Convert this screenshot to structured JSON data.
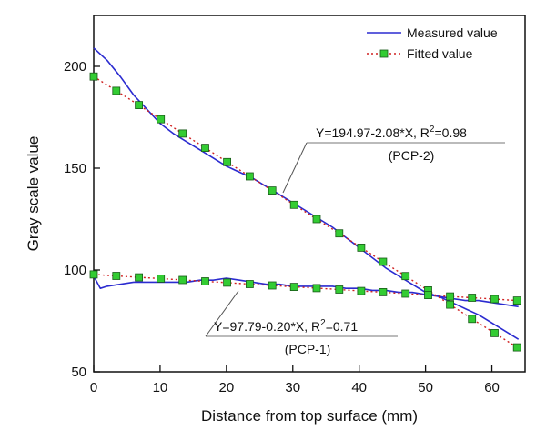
{
  "chart_data": {
    "type": "line",
    "title": "",
    "xlabel": "Distance from top surface (mm)",
    "ylabel": "Gray scale value",
    "xlim": [
      0,
      65
    ],
    "ylim": [
      50,
      225
    ],
    "x_ticks": [
      0,
      10,
      20,
      30,
      40,
      50,
      60
    ],
    "y_ticks": [
      50,
      100,
      150,
      200
    ],
    "legend": {
      "placement": "top-right",
      "entries": [
        {
          "label": "Measured value",
          "style": "line",
          "color": "#2b2bd0"
        },
        {
          "label": "Fitted value",
          "style": "dotted-line-square-marker",
          "color": "#d02020",
          "marker_color": "#33cc33"
        }
      ]
    },
    "series": [
      {
        "name": "Measured value (PCP-2)",
        "kind": "measured",
        "color": "#2b2bd0",
        "x": [
          0,
          2,
          4,
          6,
          8,
          10,
          12,
          14,
          16,
          18,
          20,
          22,
          24,
          26,
          28,
          30,
          32,
          34,
          36,
          38,
          40,
          42,
          44,
          46,
          48,
          50,
          52,
          54,
          56,
          58,
          60,
          62,
          64
        ],
        "y": [
          209,
          203,
          195,
          186,
          179,
          172,
          167,
          163,
          159,
          155,
          151,
          148,
          145,
          141,
          137,
          133,
          129,
          125,
          121,
          116,
          111,
          106,
          101,
          97,
          93,
          89,
          87,
          84,
          81,
          78,
          74,
          70,
          66
        ]
      },
      {
        "name": "Measured value (PCP-1)",
        "kind": "measured",
        "color": "#2b2bd0",
        "x": [
          0,
          1,
          2,
          4,
          6,
          8,
          10,
          12,
          14,
          16,
          18,
          20,
          22,
          24,
          26,
          28,
          30,
          32,
          34,
          36,
          38,
          40,
          42,
          44,
          46,
          48,
          50,
          52,
          54,
          56,
          58,
          60,
          62,
          64
        ],
        "y": [
          97,
          91,
          92,
          93,
          94,
          94,
          94,
          94,
          94,
          95,
          95,
          96,
          95,
          94,
          93,
          93,
          92,
          92,
          92,
          92,
          91,
          91,
          90,
          90,
          89,
          89,
          88,
          87,
          86,
          85,
          85,
          84,
          83,
          82
        ]
      },
      {
        "name": "Fitted value (PCP-2)",
        "kind": "fitted",
        "color": "#d02020",
        "marker_color": "#33cc33",
        "x": [
          0,
          3.4,
          6.8,
          10.1,
          13.4,
          16.8,
          20.1,
          23.5,
          26.9,
          30.2,
          33.6,
          37,
          40.3,
          43.6,
          47,
          50.4,
          53.7,
          57,
          60.4,
          63.8
        ],
        "y": [
          195,
          188,
          181,
          174,
          167,
          160,
          153,
          146,
          139,
          132,
          125,
          118,
          111,
          104,
          97,
          90,
          83,
          76,
          69,
          62
        ]
      },
      {
        "name": "Fitted value (PCP-1)",
        "kind": "fitted",
        "color": "#d02020",
        "marker_color": "#33cc33",
        "x": [
          0,
          3.4,
          6.8,
          10.1,
          13.4,
          16.8,
          20.1,
          23.5,
          26.9,
          30.2,
          33.6,
          37,
          40.3,
          43.6,
          47,
          50.4,
          53.7,
          57,
          60.4,
          63.8
        ],
        "y": [
          97.8,
          97.1,
          96.4,
          95.8,
          95.1,
          94.4,
          93.8,
          93.1,
          92.4,
          91.7,
          91.1,
          90.4,
          89.7,
          89.1,
          88.4,
          87.7,
          87.0,
          86.4,
          85.7,
          85.0
        ]
      }
    ],
    "annotations": [
      {
        "id": "pcp2",
        "equation_prefix": "Y=194.97-2.08*X, R",
        "superscript": "2",
        "equation_suffix": "=0.98",
        "label": "(PCP-2)",
        "points_to": {
          "x": 30,
          "y": 133
        }
      },
      {
        "id": "pcp1",
        "equation_prefix": "Y=97.79-0.20*X, R",
        "superscript": "2",
        "equation_suffix": "=0.71",
        "label": "(PCP-1)",
        "points_to": {
          "x": 21,
          "y": 95
        }
      }
    ]
  }
}
